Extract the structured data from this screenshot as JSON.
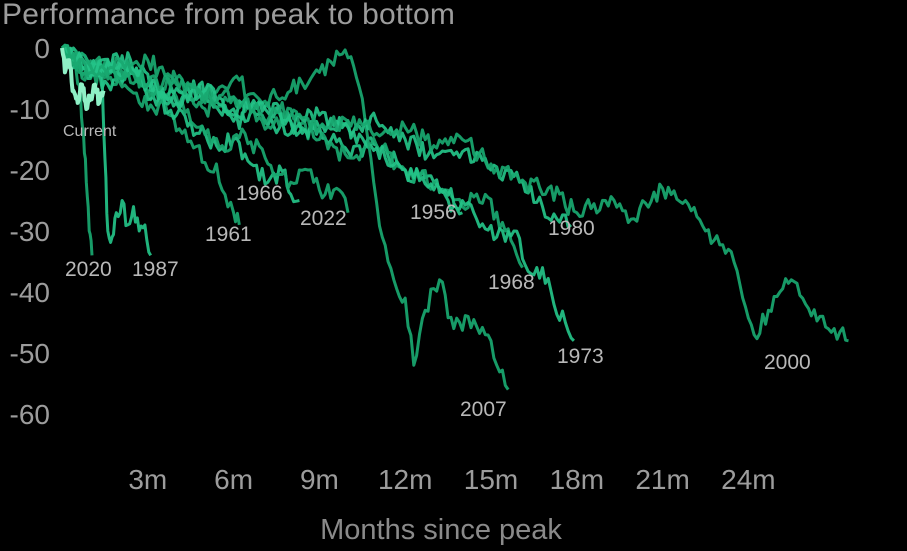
{
  "chart_data": {
    "type": "line",
    "title": "Performance from peak to bottom",
    "xlabel": "Months since peak",
    "ylabel": "",
    "x_ticks": [
      "3m",
      "6m",
      "9m",
      "12m",
      "15m",
      "18m",
      "21m",
      "24m"
    ],
    "y_ticks": [
      "0",
      "-10",
      "-20",
      "-30",
      "-40",
      "-50",
      "-60"
    ],
    "xlim": [
      0,
      27.6
    ],
    "ylim": [
      -62,
      1
    ],
    "grid": false,
    "legend": "none (series labelled at line ends)",
    "colors": {
      "line": "#19a870",
      "line_alt": "#24c388",
      "current": "#8ff0c6",
      "background": "#000000",
      "text": "#9c9c9c"
    },
    "series": [
      {
        "name": "Current",
        "points": [
          [
            0,
            0
          ],
          [
            0.1,
            -4
          ],
          [
            0.25,
            -2
          ],
          [
            0.4,
            -7
          ],
          [
            0.55,
            -9
          ],
          [
            0.7,
            -6
          ],
          [
            0.85,
            -10
          ],
          [
            1.0,
            -8
          ],
          [
            1.15,
            -6
          ],
          [
            1.3,
            -9
          ],
          [
            1.45,
            -7
          ]
        ]
      },
      {
        "name": "2020",
        "points": [
          [
            0,
            0
          ],
          [
            0.2,
            -2
          ],
          [
            0.35,
            -1
          ],
          [
            0.5,
            -4
          ],
          [
            0.65,
            -8
          ],
          [
            0.75,
            -14
          ],
          [
            0.85,
            -22
          ],
          [
            0.95,
            -30
          ],
          [
            1.05,
            -34
          ]
        ]
      },
      {
        "name": "1987",
        "points": [
          [
            0,
            0
          ],
          [
            0.3,
            -3
          ],
          [
            0.6,
            -1
          ],
          [
            0.9,
            -5
          ],
          [
            1.15,
            -3
          ],
          [
            1.4,
            -4
          ],
          [
            1.5,
            -18
          ],
          [
            1.6,
            -30
          ],
          [
            1.75,
            -31
          ],
          [
            1.9,
            -27
          ],
          [
            2.1,
            -25
          ],
          [
            2.3,
            -29
          ],
          [
            2.5,
            -26
          ],
          [
            2.7,
            -30
          ],
          [
            2.9,
            -29
          ],
          [
            3.1,
            -34
          ]
        ]
      },
      {
        "name": "1961",
        "points": [
          [
            0,
            0
          ],
          [
            0.6,
            -4
          ],
          [
            1.2,
            -2
          ],
          [
            1.8,
            -6
          ],
          [
            2.4,
            -3
          ],
          [
            3.0,
            -7
          ],
          [
            3.6,
            -9
          ],
          [
            4.2,
            -14
          ],
          [
            4.8,
            -16
          ],
          [
            5.1,
            -20
          ],
          [
            5.4,
            -19
          ],
          [
            5.7,
            -24
          ],
          [
            6.0,
            -27
          ],
          [
            6.2,
            -29
          ]
        ]
      },
      {
        "name": "1966",
        "points": [
          [
            0,
            0
          ],
          [
            0.8,
            -3
          ],
          [
            1.6,
            -6
          ],
          [
            2.4,
            -4
          ],
          [
            3.2,
            -8
          ],
          [
            4.0,
            -11
          ],
          [
            4.8,
            -14
          ],
          [
            5.4,
            -16
          ],
          [
            6.0,
            -15
          ],
          [
            6.6,
            -19
          ],
          [
            7.2,
            -22
          ],
          [
            7.8,
            -20
          ],
          [
            8.0,
            -24
          ],
          [
            8.3,
            -25
          ]
        ]
      },
      {
        "name": "2022",
        "points": [
          [
            0,
            0
          ],
          [
            0.8,
            -4
          ],
          [
            1.6,
            -3
          ],
          [
            2.4,
            -7
          ],
          [
            3.2,
            -10
          ],
          [
            4.0,
            -8
          ],
          [
            4.8,
            -13
          ],
          [
            5.6,
            -16
          ],
          [
            6.4,
            -14
          ],
          [
            7.2,
            -19
          ],
          [
            8.0,
            -22
          ],
          [
            8.6,
            -20
          ],
          [
            9.2,
            -24
          ],
          [
            9.6,
            -23
          ],
          [
            10.0,
            -27
          ]
        ]
      },
      {
        "name": "1956",
        "points": [
          [
            0,
            0
          ],
          [
            1.0,
            -3
          ],
          [
            2.0,
            -2
          ],
          [
            3.0,
            -6
          ],
          [
            4.0,
            -9
          ],
          [
            5.0,
            -7
          ],
          [
            6.0,
            -12
          ],
          [
            7.0,
            -11
          ],
          [
            8.0,
            -14
          ],
          [
            9.0,
            -13
          ],
          [
            10.0,
            -17
          ],
          [
            11.0,
            -16
          ],
          [
            12.0,
            -20
          ],
          [
            13.0,
            -22
          ],
          [
            13.5,
            -25
          ],
          [
            14.0,
            -27
          ]
        ]
      },
      {
        "name": "1968",
        "points": [
          [
            0,
            0
          ],
          [
            1.0,
            -5
          ],
          [
            2.0,
            -3
          ],
          [
            3.0,
            -7
          ],
          [
            4.0,
            -5
          ],
          [
            5.0,
            -10
          ],
          [
            6.0,
            -8
          ],
          [
            7.0,
            -12
          ],
          [
            8.0,
            -11
          ],
          [
            9.0,
            -15
          ],
          [
            10.0,
            -18
          ],
          [
            11.0,
            -16
          ],
          [
            12.0,
            -20
          ],
          [
            13.0,
            -22
          ],
          [
            14.0,
            -26
          ],
          [
            14.8,
            -24
          ],
          [
            15.5,
            -30
          ],
          [
            16.1,
            -36
          ]
        ]
      },
      {
        "name": "1973",
        "points": [
          [
            0,
            0
          ],
          [
            1.2,
            -4
          ],
          [
            2.4,
            -2
          ],
          [
            3.6,
            -8
          ],
          [
            4.8,
            -6
          ],
          [
            6.0,
            -11
          ],
          [
            7.2,
            -9
          ],
          [
            8.4,
            -14
          ],
          [
            9.6,
            -12
          ],
          [
            10.8,
            -16
          ],
          [
            12.0,
            -20
          ],
          [
            13.2,
            -23
          ],
          [
            14.4,
            -27
          ],
          [
            15.2,
            -31
          ],
          [
            15.8,
            -30
          ],
          [
            16.4,
            -37
          ],
          [
            16.8,
            -36
          ],
          [
            17.2,
            -42
          ],
          [
            17.6,
            -45
          ],
          [
            17.9,
            -48
          ]
        ]
      },
      {
        "name": "2007",
        "points": [
          [
            0,
            0
          ],
          [
            1.0,
            -3
          ],
          [
            2.0,
            -5
          ],
          [
            3.0,
            -2
          ],
          [
            4.0,
            -6
          ],
          [
            5.0,
            -8
          ],
          [
            6.0,
            -5
          ],
          [
            7.0,
            -9
          ],
          [
            8.0,
            -7
          ],
          [
            9.0,
            -4
          ],
          [
            9.8,
            -1
          ],
          [
            10.2,
            -3
          ],
          [
            10.6,
            -12
          ],
          [
            10.9,
            -22
          ],
          [
            11.2,
            -31
          ],
          [
            11.6,
            -38
          ],
          [
            12.0,
            -41
          ],
          [
            12.3,
            -52
          ],
          [
            12.7,
            -43
          ],
          [
            13.2,
            -38
          ],
          [
            13.7,
            -46
          ],
          [
            14.2,
            -44
          ],
          [
            14.8,
            -47
          ],
          [
            15.2,
            -52
          ],
          [
            15.6,
            -56
          ]
        ]
      },
      {
        "name": "1980",
        "points": [
          [
            0,
            0
          ],
          [
            1.0,
            -4
          ],
          [
            2.0,
            -2
          ],
          [
            3.0,
            -6
          ],
          [
            4.0,
            -9
          ],
          [
            5.0,
            -7
          ],
          [
            6.0,
            -10
          ],
          [
            7.0,
            -9
          ],
          [
            8.0,
            -12
          ],
          [
            9.0,
            -11
          ],
          [
            10.0,
            -13
          ],
          [
            11.0,
            -12
          ],
          [
            12.0,
            -15
          ],
          [
            13.0,
            -18
          ],
          [
            14.0,
            -17
          ],
          [
            15.0,
            -20
          ],
          [
            16.0,
            -22
          ],
          [
            16.8,
            -26
          ],
          [
            17.3,
            -28
          ],
          [
            17.8,
            -29
          ]
        ]
      },
      {
        "name": "2000",
        "points": [
          [
            0,
            0
          ],
          [
            1.0,
            -4
          ],
          [
            2.0,
            -2
          ],
          [
            3.0,
            -6
          ],
          [
            4.0,
            -5
          ],
          [
            5.0,
            -9
          ],
          [
            6.0,
            -8
          ],
          [
            7.0,
            -11
          ],
          [
            8.0,
            -10
          ],
          [
            9.0,
            -13
          ],
          [
            10.0,
            -12
          ],
          [
            11.0,
            -14
          ],
          [
            12.0,
            -13
          ],
          [
            13.0,
            -16
          ],
          [
            14.0,
            -15
          ],
          [
            15.0,
            -19
          ],
          [
            16.0,
            -22
          ],
          [
            17.0,
            -23
          ],
          [
            18.0,
            -27
          ],
          [
            19.0,
            -25
          ],
          [
            20.0,
            -28
          ],
          [
            21.0,
            -23
          ],
          [
            21.8,
            -25
          ],
          [
            22.5,
            -30
          ],
          [
            23.3,
            -33
          ],
          [
            23.8,
            -41
          ],
          [
            24.2,
            -47
          ],
          [
            24.7,
            -43
          ],
          [
            25.1,
            -40
          ],
          [
            25.5,
            -38
          ],
          [
            26.0,
            -42
          ],
          [
            26.5,
            -44
          ],
          [
            27.0,
            -46
          ],
          [
            27.5,
            -48
          ]
        ]
      }
    ]
  }
}
